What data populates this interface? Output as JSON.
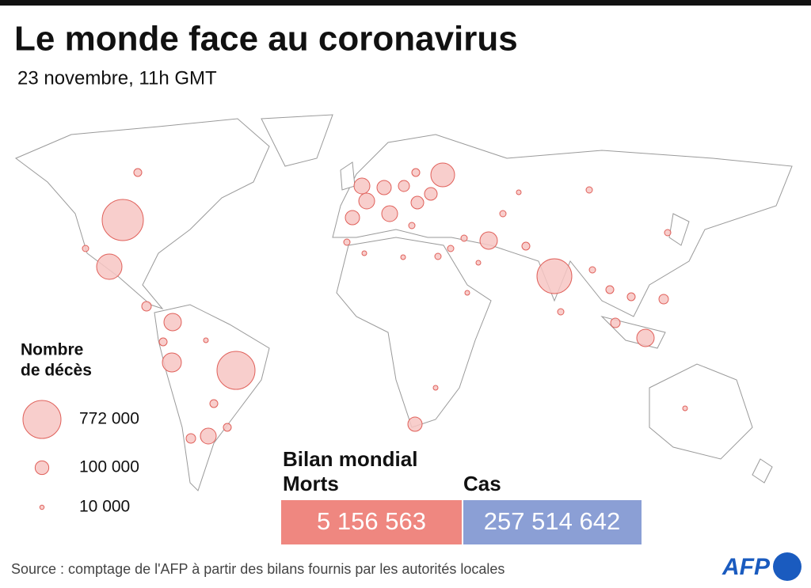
{
  "header": {
    "title": "Le monde face au coronavirus",
    "subtitle": "23 novembre, 11h GMT"
  },
  "legend": {
    "title_line1": "Nombre",
    "title_line2": "de décès",
    "items": [
      {
        "value": 772000,
        "label": "772 000"
      },
      {
        "value": 100000,
        "label": "100 000"
      },
      {
        "value": 10000,
        "label": "10 000"
      }
    ]
  },
  "summary": {
    "title": "Bilan mondial",
    "deaths": {
      "label": "Morts",
      "value": "5 156 563"
    },
    "cases": {
      "label": "Cas",
      "value": "257 514 642"
    }
  },
  "footer": {
    "source": "Source : comptage de l'AFP à partir des bilans fournis par les autorités locales",
    "logo": "AFP"
  }
}
